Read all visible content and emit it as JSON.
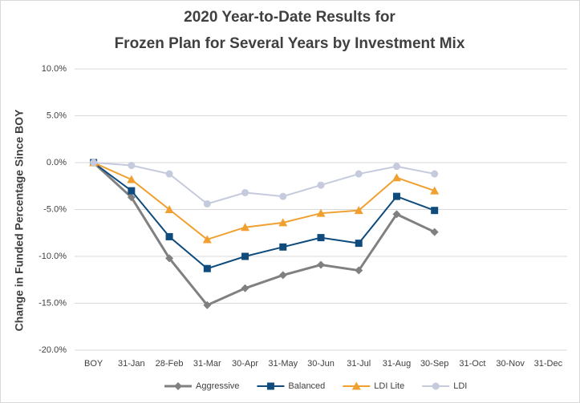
{
  "chart_data": {
    "type": "line",
    "title": [
      "2020 Year-to-Date Results for",
      "Frozen Plan for Several Years by Investment Mix"
    ],
    "y_label": "Change in Funded Percentage Since BOY",
    "categories": [
      "BOY",
      "31-Jan",
      "28-Feb",
      "31-Mar",
      "30-Apr",
      "31-May",
      "30-Jun",
      "31-Jul",
      "31-Aug",
      "30-Sep",
      "31-Oct",
      "30-Nov",
      "31-Dec"
    ],
    "series": [
      {
        "name": "Aggressive",
        "color": "#808080",
        "marker": "diamond",
        "values": [
          0,
          -3.7,
          -10.2,
          -15.2,
          -13.4,
          -12.0,
          -10.9,
          -11.5,
          -5.5,
          -7.4,
          null,
          null,
          null
        ]
      },
      {
        "name": "Balanced",
        "color": "#0f4c7d",
        "marker": "square",
        "values": [
          0,
          -3.0,
          -7.9,
          -11.3,
          -10.0,
          -9.0,
          -8.0,
          -8.6,
          -3.6,
          -5.1,
          null,
          null,
          null
        ]
      },
      {
        "name": "LDI Lite",
        "color": "#f0a030",
        "marker": "triangle",
        "values": [
          0,
          -1.8,
          -5.0,
          -8.2,
          -6.9,
          -6.4,
          -5.4,
          -5.1,
          -1.6,
          -3.0,
          null,
          null,
          null
        ]
      },
      {
        "name": "LDI",
        "color": "#c5cbdd",
        "marker": "circle",
        "values": [
          0,
          -0.3,
          -1.2,
          -4.4,
          -3.2,
          -3.6,
          -2.4,
          -1.2,
          -0.4,
          -1.2,
          null,
          null,
          null
        ]
      }
    ],
    "ylim": [
      -20,
      10
    ],
    "yticks": [
      {
        "value": -20,
        "label": "-20.0%"
      },
      {
        "value": -15,
        "label": "-15.0%"
      },
      {
        "value": -10,
        "label": "-10.0%"
      },
      {
        "value": -5,
        "label": "-5.0%"
      },
      {
        "value": 0,
        "label": "0.0%"
      },
      {
        "value": 5,
        "label": "5.0%"
      },
      {
        "value": 10,
        "label": "10.0%"
      }
    ],
    "grid": true,
    "legend": "bottom"
  }
}
